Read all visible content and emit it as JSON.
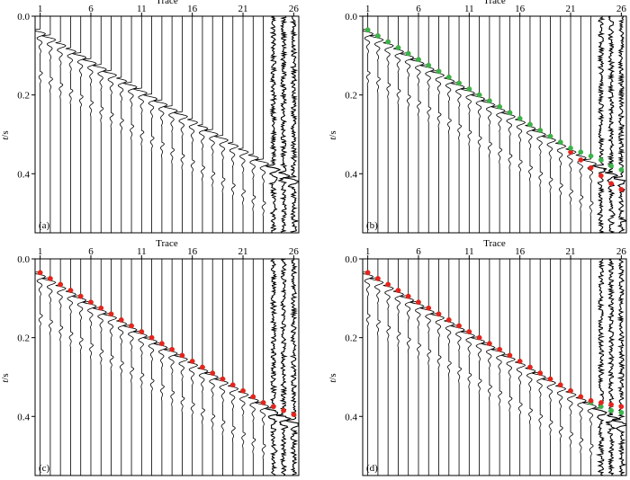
{
  "chart_data": [
    {
      "type": "line",
      "panel": "(a)",
      "xlabel": "Trace",
      "ylabel_italic": "t",
      "ylabel_unit": "/s",
      "x_ticks": [
        1,
        6,
        11,
        16,
        21,
        26
      ],
      "y_ticks": [
        "0.0",
        "0.2",
        "0.4"
      ],
      "y_tick_values": [
        0.0,
        0.2,
        0.4
      ],
      "xlim": [
        0.5,
        26.5
      ],
      "ylim": [
        0.0,
        0.55
      ],
      "n_traces": 26,
      "first_arrival_time": [
        0.04,
        0.055,
        0.07,
        0.085,
        0.1,
        0.115,
        0.13,
        0.145,
        0.16,
        0.175,
        0.19,
        0.205,
        0.22,
        0.235,
        0.25,
        0.265,
        0.28,
        0.295,
        0.31,
        0.325,
        0.34,
        0.355,
        0.37,
        0.385,
        0.4,
        0.415
      ],
      "picks": []
    },
    {
      "type": "line",
      "panel": "(b)",
      "xlabel": "Trace",
      "ylabel_italic": "t",
      "ylabel_unit": "/s",
      "x_ticks": [
        1,
        6,
        11,
        16,
        21,
        26
      ],
      "y_ticks": [
        "0.0",
        "0.2",
        "0.4"
      ],
      "y_tick_values": [
        0.0,
        0.2,
        0.4
      ],
      "xlim": [
        0.5,
        26.5
      ],
      "ylim": [
        0.0,
        0.55
      ],
      "n_traces": 26,
      "first_arrival_time": [
        0.04,
        0.055,
        0.07,
        0.085,
        0.1,
        0.115,
        0.13,
        0.145,
        0.16,
        0.175,
        0.19,
        0.205,
        0.22,
        0.235,
        0.25,
        0.265,
        0.28,
        0.295,
        0.31,
        0.325,
        0.34,
        0.355,
        0.37,
        0.385,
        0.4,
        0.415
      ],
      "picks": [
        {
          "color": "#e8231e",
          "values": [
            0.035,
            0.05,
            0.065,
            0.08,
            0.095,
            0.11,
            0.125,
            0.14,
            0.155,
            0.17,
            0.185,
            0.2,
            0.215,
            0.23,
            0.245,
            0.26,
            0.275,
            0.29,
            0.305,
            0.32,
            0.345,
            0.365,
            0.385,
            0.405,
            0.425,
            0.44
          ]
        },
        {
          "color": "#39b54a",
          "values": [
            0.035,
            0.05,
            0.065,
            0.08,
            0.095,
            0.11,
            0.125,
            0.14,
            0.155,
            0.17,
            0.185,
            0.2,
            0.215,
            0.23,
            0.245,
            0.26,
            0.275,
            0.29,
            0.305,
            0.32,
            0.335,
            0.345,
            0.355,
            0.365,
            0.38,
            0.39
          ]
        }
      ]
    },
    {
      "type": "line",
      "panel": "(c)",
      "xlabel": "Trace",
      "ylabel_italic": "t",
      "ylabel_unit": "/s",
      "x_ticks": [
        1,
        6,
        11,
        16,
        21,
        26
      ],
      "y_ticks": [
        "0.0",
        "0.2",
        "0.4"
      ],
      "y_tick_values": [
        0.0,
        0.2,
        0.4
      ],
      "xlim": [
        0.5,
        26.5
      ],
      "ylim": [
        0.0,
        0.55
      ],
      "n_traces": 26,
      "first_arrival_time": [
        0.04,
        0.055,
        0.07,
        0.085,
        0.1,
        0.115,
        0.13,
        0.145,
        0.16,
        0.175,
        0.19,
        0.205,
        0.22,
        0.235,
        0.25,
        0.265,
        0.28,
        0.295,
        0.31,
        0.325,
        0.34,
        0.355,
        0.37,
        0.385,
        0.4,
        0.415
      ],
      "picks": [
        {
          "color": "#39b54a",
          "values": [
            0.035,
            0.05,
            0.065,
            0.08,
            0.095,
            0.11,
            0.125,
            0.14,
            0.155,
            0.17,
            0.185,
            0.2,
            0.215,
            0.23,
            0.245,
            0.26,
            0.275,
            0.29,
            0.305,
            0.32,
            0.335,
            0.35,
            0.365,
            0.375,
            0.385,
            0.395
          ]
        },
        {
          "color": "#e8231e",
          "values": [
            0.035,
            0.05,
            0.065,
            0.08,
            0.095,
            0.11,
            0.125,
            0.14,
            0.155,
            0.17,
            0.185,
            0.2,
            0.215,
            0.23,
            0.245,
            0.26,
            0.275,
            0.29,
            0.305,
            0.32,
            0.335,
            0.35,
            0.365,
            0.375,
            0.385,
            0.395
          ]
        }
      ]
    },
    {
      "type": "line",
      "panel": "(d)",
      "xlabel": "Trace",
      "ylabel_italic": "t",
      "ylabel_unit": "/s",
      "x_ticks": [
        1,
        6,
        11,
        16,
        21,
        26
      ],
      "y_ticks": [
        "0.0",
        "0.2",
        "0.4"
      ],
      "y_tick_values": [
        0.0,
        0.2,
        0.4
      ],
      "xlim": [
        0.5,
        26.5
      ],
      "ylim": [
        0.0,
        0.55
      ],
      "n_traces": 26,
      "first_arrival_time": [
        0.04,
        0.055,
        0.07,
        0.085,
        0.1,
        0.115,
        0.13,
        0.145,
        0.16,
        0.175,
        0.19,
        0.205,
        0.22,
        0.235,
        0.25,
        0.265,
        0.28,
        0.295,
        0.31,
        0.325,
        0.34,
        0.355,
        0.37,
        0.385,
        0.4,
        0.415
      ],
      "picks": [
        {
          "color": "#39b54a",
          "values": [
            0.035,
            0.05,
            0.065,
            0.08,
            0.095,
            0.11,
            0.125,
            0.14,
            0.155,
            0.17,
            0.185,
            0.2,
            0.215,
            0.23,
            0.245,
            0.26,
            0.275,
            0.29,
            0.305,
            0.32,
            0.335,
            0.35,
            0.365,
            0.375,
            0.385,
            0.39
          ]
        },
        {
          "color": "#e8231e",
          "values": [
            0.035,
            0.05,
            0.065,
            0.08,
            0.095,
            0.11,
            0.125,
            0.14,
            0.155,
            0.17,
            0.185,
            0.2,
            0.215,
            0.23,
            0.245,
            0.26,
            0.275,
            0.29,
            0.305,
            0.32,
            0.335,
            0.35,
            0.36,
            0.365,
            0.37,
            0.375
          ]
        }
      ]
    }
  ]
}
